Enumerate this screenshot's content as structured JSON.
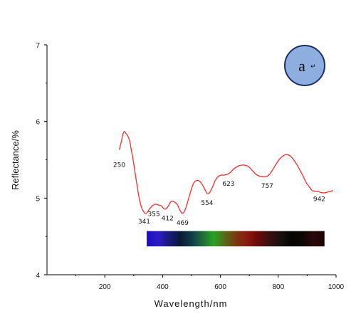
{
  "chart_data": {
    "type": "line",
    "title": "",
    "xlabel": "Wavelength/nm",
    "ylabel": "Reflectance/%",
    "xlim": [
      0,
      1000
    ],
    "ylim": [
      4,
      7
    ],
    "x_ticks": [
      "200",
      "400",
      "600",
      "800",
      "1000"
    ],
    "y_ticks": [
      "4",
      "5",
      "6",
      "7"
    ],
    "grid": false,
    "legend": "none",
    "series": [
      {
        "color": "#ff2a2a",
        "x": [
          250,
          258,
          263,
          268,
          272,
          278,
          285,
          292,
          300,
          310,
          320,
          330,
          341,
          348,
          355,
          365,
          375,
          385,
          395,
          405,
          412,
          420,
          430,
          440,
          450,
          460,
          469,
          478,
          488,
          498,
          508,
          518,
          528,
          538,
          548,
          554,
          562,
          572,
          582,
          592,
          602,
          612,
          623,
          633,
          643,
          653,
          663,
          673,
          683,
          693,
          703,
          713,
          723,
          733,
          743,
          757,
          767,
          777,
          787,
          797,
          807,
          817,
          827,
          837,
          847,
          857,
          867,
          877,
          887,
          897,
          907,
          917,
          927,
          937,
          942,
          952,
          962,
          972,
          982,
          990
        ],
        "y": [
          5.63,
          5.75,
          5.84,
          5.87,
          5.85,
          5.82,
          5.76,
          5.62,
          5.45,
          5.2,
          4.98,
          4.85,
          4.8,
          4.82,
          4.86,
          4.9,
          4.92,
          4.91,
          4.9,
          4.86,
          4.86,
          4.9,
          4.96,
          4.95,
          4.92,
          4.84,
          4.8,
          4.85,
          4.97,
          5.1,
          5.2,
          5.23,
          5.22,
          5.17,
          5.1,
          5.06,
          5.07,
          5.14,
          5.23,
          5.28,
          5.3,
          5.3,
          5.31,
          5.33,
          5.37,
          5.4,
          5.42,
          5.43,
          5.43,
          5.42,
          5.39,
          5.35,
          5.31,
          5.29,
          5.28,
          5.28,
          5.3,
          5.35,
          5.41,
          5.47,
          5.52,
          5.55,
          5.57,
          5.56,
          5.53,
          5.48,
          5.42,
          5.35,
          5.28,
          5.2,
          5.15,
          5.1,
          5.09,
          5.09,
          5.08,
          5.07,
          5.07,
          5.08,
          5.09,
          5.1
        ]
      }
    ],
    "annotations": [
      {
        "text": "250",
        "x": 250,
        "y": 5.63
      },
      {
        "text": "341",
        "x": 341,
        "y": 4.8
      },
      {
        "text": "355",
        "x": 355,
        "y": 4.86
      },
      {
        "text": "412",
        "x": 412,
        "y": 4.86
      },
      {
        "text": "469",
        "x": 469,
        "y": 4.8
      },
      {
        "text": "554",
        "x": 554,
        "y": 5.06
      },
      {
        "text": "623",
        "x": 623,
        "y": 5.31
      },
      {
        "text": "757",
        "x": 757,
        "y": 5.28
      },
      {
        "text": "942",
        "x": 942,
        "y": 5.09
      }
    ],
    "spectrum_bar": {
      "x_range": [
        345,
        960
      ],
      "y_range": [
        4.37,
        4.57
      ],
      "colors": [
        "#1a0fb8",
        "#2d1cc9",
        "#1a1a7a",
        "#0a1a33",
        "#0f3a4a",
        "#1f6a3a",
        "#28a320",
        "#556b1a",
        "#7a3a10",
        "#8a1a10",
        "#6b0a0a",
        "#3a1010",
        "#1a1010",
        "#050505",
        "#0d0505",
        "#2a0808",
        "#1a0202"
      ]
    }
  },
  "badge": {
    "label": "a",
    "mark": "↵",
    "fill": "#8eaee0",
    "stroke": "#1c2f6a"
  }
}
